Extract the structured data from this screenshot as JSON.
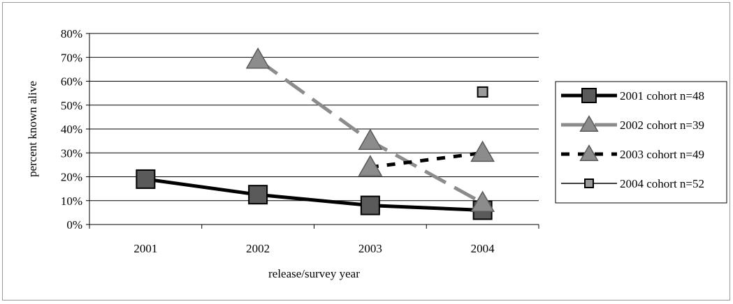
{
  "chart_data": {
    "type": "line",
    "title": "",
    "xlabel": "release/survey year",
    "ylabel": "percent known alive",
    "categories": [
      "2001",
      "2002",
      "2003",
      "2004"
    ],
    "ylim": [
      0,
      80
    ],
    "yticks": [
      "0%",
      "10%",
      "20%",
      "30%",
      "40%",
      "50%",
      "60%",
      "70%",
      "80%"
    ],
    "grid": true,
    "legend_position": "right",
    "series": [
      {
        "name": "2001 cohort n=48",
        "values": [
          19,
          12.5,
          8,
          6
        ],
        "line": "solid-thick",
        "marker": "square",
        "color": "#000000"
      },
      {
        "name": "2002 cohort n=39",
        "values": [
          null,
          69,
          35,
          9
        ],
        "line": "long-dash",
        "marker": "triangle",
        "color": "#8c8c8c"
      },
      {
        "name": "2003 cohort n=49",
        "values": [
          null,
          null,
          24,
          30
        ],
        "line": "short-dash",
        "marker": "triangle",
        "color": "#8c8c8c"
      },
      {
        "name": "2004 cohort n=52",
        "values": [
          null,
          null,
          null,
          55.5
        ],
        "line": "thin",
        "marker": "square",
        "color": "#9a9a9a"
      }
    ]
  }
}
